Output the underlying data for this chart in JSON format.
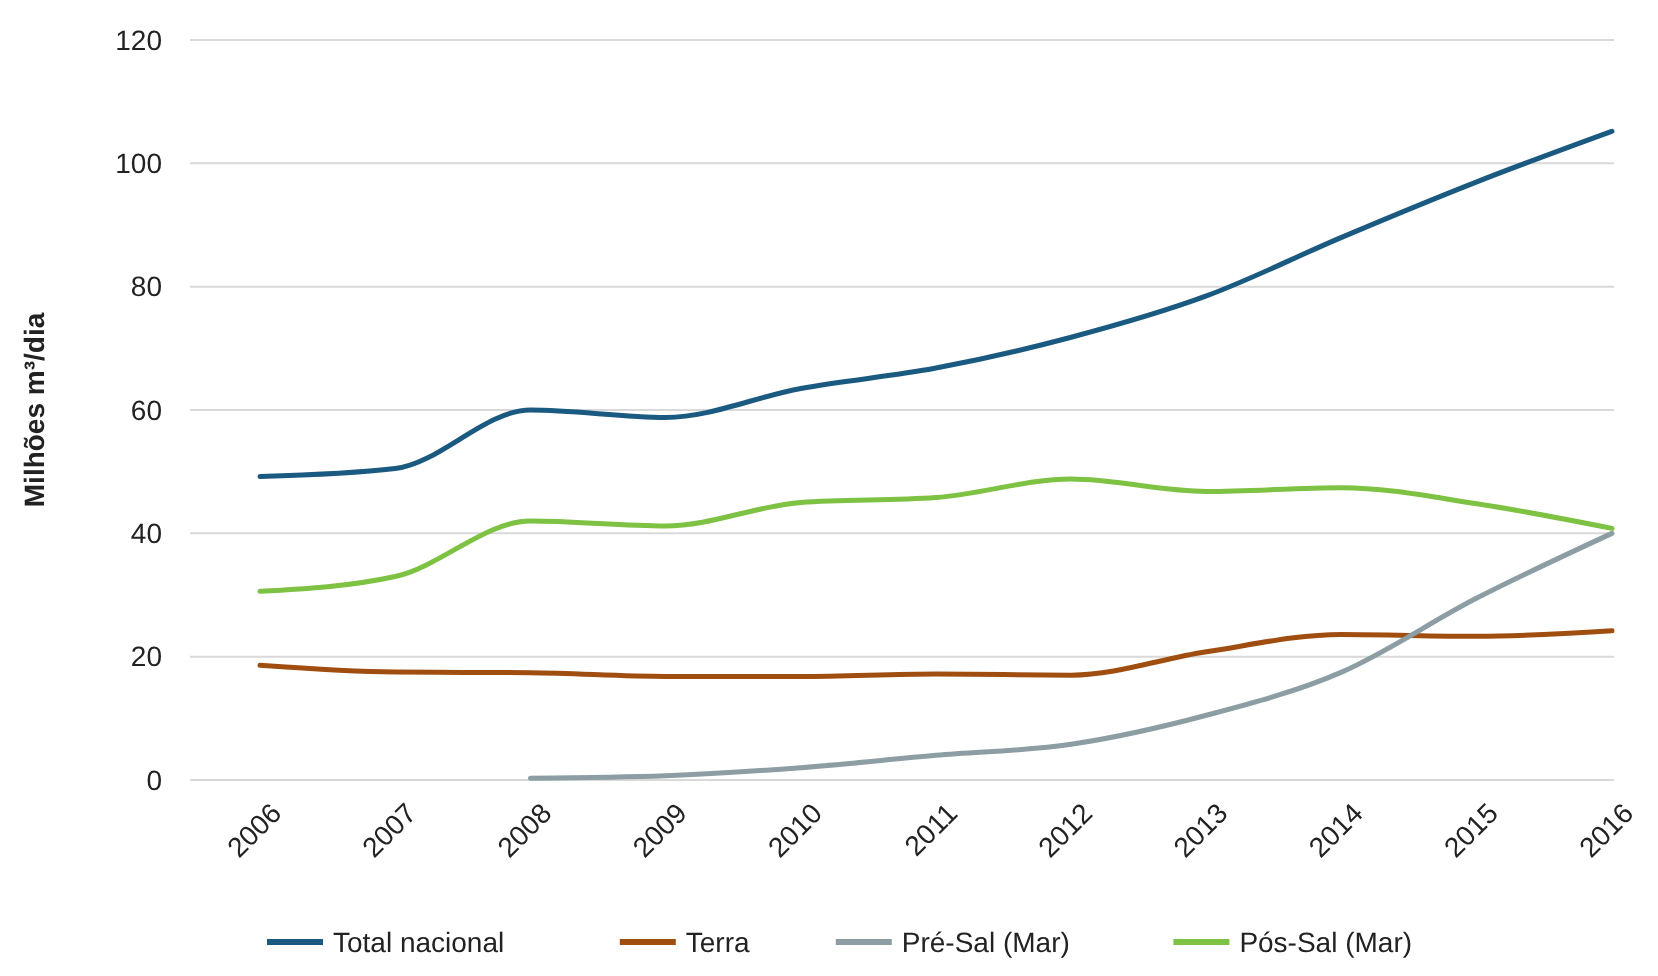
{
  "chart_data": {
    "type": "line",
    "ylabel": "Milhões m³/dia",
    "categories": [
      "2006",
      "2007",
      "2008",
      "2009",
      "2010",
      "2011",
      "2012",
      "2013",
      "2014",
      "2015",
      "2016"
    ],
    "series": [
      {
        "name": "Total nacional",
        "color": "#1a5a80",
        "values": [
          49.2,
          50.5,
          60,
          58.8,
          63.5,
          66.8,
          71.8,
          78.5,
          88,
          97,
          105.2
        ]
      },
      {
        "name": "Terra",
        "color": "#a04e10",
        "values": [
          18.6,
          17.5,
          17.4,
          16.8,
          16.8,
          17.2,
          17,
          20.8,
          23.6,
          23.3,
          24.2
        ]
      },
      {
        "name": "Pré-Sal (Mar)",
        "color": "#8c9ea3",
        "values": [
          null,
          null,
          0.3,
          0.7,
          2,
          4,
          5.8,
          10.5,
          17.5,
          29.5,
          40
        ]
      },
      {
        "name": "Pós-Sal (Mar)",
        "color": "#7dc242",
        "values": [
          30.6,
          33,
          42,
          41.2,
          45,
          45.8,
          48.8,
          46.8,
          47.4,
          44.8,
          40.8
        ]
      }
    ],
    "ylim": [
      0,
      120
    ],
    "yticks": [
      0,
      20,
      40,
      60,
      80,
      100,
      120
    ],
    "grid": "y",
    "legend": "bottom",
    "marker": "none",
    "line_style": "solid"
  }
}
